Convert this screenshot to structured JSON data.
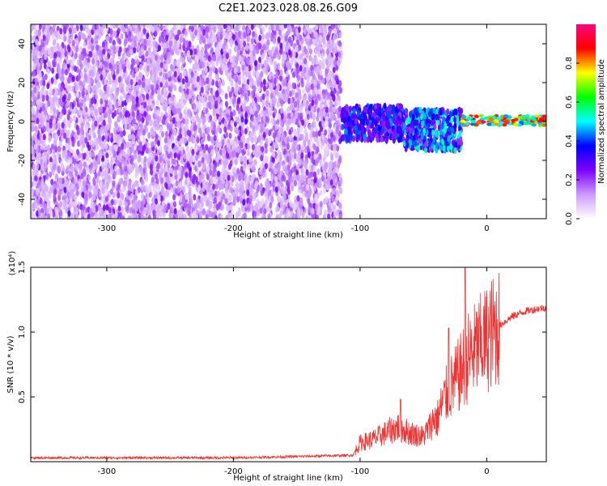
{
  "title": "C2E1.2023.028.08.26.G09",
  "chart_data": [
    {
      "type": "heatmap",
      "xlabel": "Height of straight line (km)",
      "ylabel": "Frequency (Hz)",
      "xlim": [
        -360,
        47
      ],
      "ylim": [
        -50,
        50
      ],
      "xticks": [
        -300,
        -200,
        -100,
        0
      ],
      "yticks": [
        -40,
        -20,
        0,
        20,
        40
      ],
      "xtick_labels": [
        "-300",
        "-200",
        "-100",
        "0"
      ],
      "ytick_labels": [
        "-40",
        "-20",
        "0",
        "20",
        "40"
      ],
      "colorbar": {
        "label": "Normalized spectral amplitude",
        "range": [
          0,
          1
        ],
        "ticks": [
          0.0,
          0.2,
          0.4,
          0.6,
          0.8
        ],
        "tick_labels": [
          "0.0",
          "0.2",
          "0.4",
          "0.6",
          "0.8"
        ],
        "colors": [
          "#ffffff",
          "#cc99ff",
          "#7b00ff",
          "#0000ff",
          "#00ffff",
          "#00ff00",
          "#ffff00",
          "#ff0000",
          "#ff0080"
        ]
      },
      "regions": [
        {
          "x_range": [
            -360,
            -115
          ],
          "freq_range": [
            -50,
            50
          ],
          "amplitude": [
            0.05,
            0.25
          ]
        },
        {
          "x_range": [
            -115,
            -65
          ],
          "freq_range": [
            -10,
            8
          ],
          "amplitude": [
            0.2,
            0.45
          ]
        },
        {
          "x_range": [
            -65,
            -20
          ],
          "freq_range": [
            -15,
            6
          ],
          "amplitude": [
            0.2,
            0.55
          ]
        },
        {
          "x_range": [
            -20,
            47
          ],
          "freq_range": [
            -2,
            3
          ],
          "amplitude": [
            0.4,
            1.0
          ]
        }
      ],
      "grid": false
    },
    {
      "type": "line",
      "xlabel": "Height of straight line (km)",
      "ylabel": "SNR (10 * v/v)",
      "y_scale_label": "(x10⁴)",
      "xlim": [
        -360,
        47
      ],
      "ylim": [
        0,
        1.5
      ],
      "xticks": [
        -300,
        -200,
        -100,
        0
      ],
      "yticks": [
        0.5,
        1.0,
        1.5
      ],
      "xtick_labels": [
        "-300",
        "-200",
        "-100",
        "0"
      ],
      "ytick_labels": [
        "0.5",
        "1.0",
        "1.5"
      ],
      "series": [
        {
          "color": "#ee3333",
          "x": [
            -360,
            -300,
            -200,
            -150,
            -105,
            -100,
            -90,
            -80,
            -70,
            -60,
            -50,
            -45,
            -40,
            -35,
            -30,
            -25,
            -20,
            -15,
            -10,
            -5,
            0,
            10,
            20,
            30,
            40,
            47
          ],
          "y": [
            0.03,
            0.03,
            0.03,
            0.04,
            0.05,
            0.12,
            0.14,
            0.18,
            0.22,
            0.18,
            0.16,
            0.22,
            0.3,
            0.45,
            0.55,
            0.62,
            0.7,
            0.8,
            0.85,
            0.9,
            0.95,
            1.05,
            1.12,
            1.16,
            1.18,
            1.19
          ],
          "peaks": [
            [
              -68,
              0.48
            ],
            [
              -30,
              1.03
            ],
            [
              -17,
              1.5
            ]
          ]
        }
      ],
      "grid": false
    }
  ]
}
